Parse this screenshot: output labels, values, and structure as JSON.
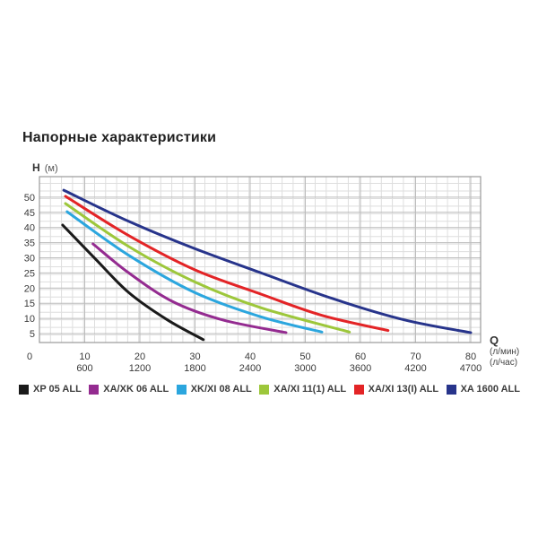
{
  "title": "Напорные характеристики",
  "chart_data": {
    "type": "line",
    "title": "Напорные характеристики",
    "grid": true,
    "legend_position": "bottom",
    "y_axis": {
      "label": "H",
      "unit": "(м)",
      "ticks": [
        "5",
        "10",
        "15",
        "20",
        "25",
        "30",
        "35",
        "40",
        "45",
        "50"
      ],
      "range": [
        2,
        57
      ]
    },
    "x_axis": {
      "label": "Q",
      "units": [
        "(л/мин)",
        "(л/час)"
      ],
      "ticks_l_min": [
        "0",
        "10",
        "20",
        "30",
        "40",
        "50",
        "60",
        "70",
        "80"
      ],
      "ticks_l_hour": [
        "600",
        "1200",
        "1800",
        "2400",
        "3000",
        "3600",
        "4200",
        "4700"
      ],
      "range": [
        1.8,
        81.8
      ]
    },
    "series": [
      {
        "name": "XP 05 ALL",
        "color": "#1a1a1a",
        "points": [
          [
            6,
            40.8
          ],
          [
            12,
            29.5
          ],
          [
            18,
            18.5
          ],
          [
            25,
            9.5
          ],
          [
            31.5,
            3
          ]
        ]
      },
      {
        "name": "XA/XK 06 ALL",
        "color": "#942b90",
        "points": [
          [
            11.5,
            34.6
          ],
          [
            18,
            25
          ],
          [
            26,
            15.5
          ],
          [
            35,
            9.5
          ],
          [
            46.5,
            5.3
          ]
        ]
      },
      {
        "name": "XK/XI 08 ALL",
        "color": "#2ba6de",
        "points": [
          [
            6.8,
            45.2
          ],
          [
            18,
            30.8
          ],
          [
            30,
            18.5
          ],
          [
            42,
            10.5
          ],
          [
            53,
            5.5
          ]
        ]
      },
      {
        "name": "XA/XI 11(1) ALL",
        "color": "#9dc73b",
        "points": [
          [
            6.5,
            47.9
          ],
          [
            18,
            33.7
          ],
          [
            30,
            22
          ],
          [
            42,
            13.5
          ],
          [
            58,
            5.5
          ]
        ]
      },
      {
        "name": "XA/XI 13(I) ALL",
        "color": "#e32426",
        "points": [
          [
            6.5,
            50.3
          ],
          [
            18,
            37.3
          ],
          [
            30,
            26
          ],
          [
            42,
            18
          ],
          [
            53,
            11
          ],
          [
            65,
            6
          ]
        ]
      },
      {
        "name": "XA 1600 ALL",
        "color": "#27348b",
        "points": [
          [
            6.2,
            52.3
          ],
          [
            18,
            42
          ],
          [
            30,
            33
          ],
          [
            42,
            25
          ],
          [
            55,
            16.5
          ],
          [
            68,
            9.5
          ],
          [
            80,
            5.3
          ]
        ]
      }
    ]
  }
}
